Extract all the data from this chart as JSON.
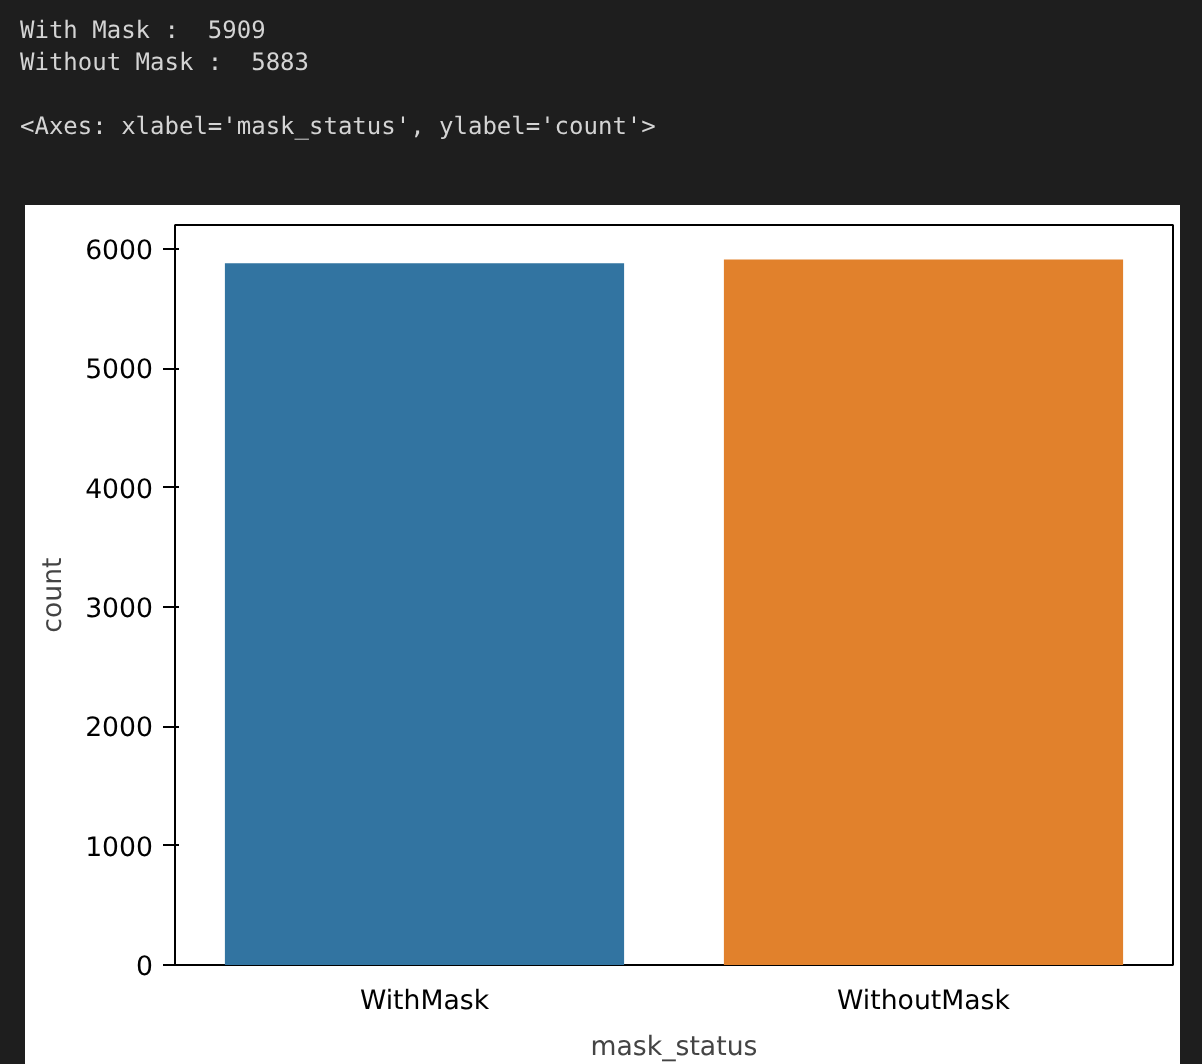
{
  "chart_data": {
    "type": "bar",
    "xlabel": "mask_status",
    "ylabel": "count",
    "categories": [
      "WithMask",
      "WithoutMask"
    ],
    "values": [
      5880,
      5910
    ],
    "colors": [
      "#3274a1",
      "#e1812c"
    ],
    "ylim": [
      0,
      6200
    ],
    "yticks": [
      0,
      1000,
      2000,
      3000,
      4000,
      5000,
      6000
    ],
    "grid": false,
    "annotations": [
      "With Mask :  5909",
      "Without Mask :  5883",
      "<Axes: xlabel='mask_status', ylabel='count'>"
    ]
  }
}
